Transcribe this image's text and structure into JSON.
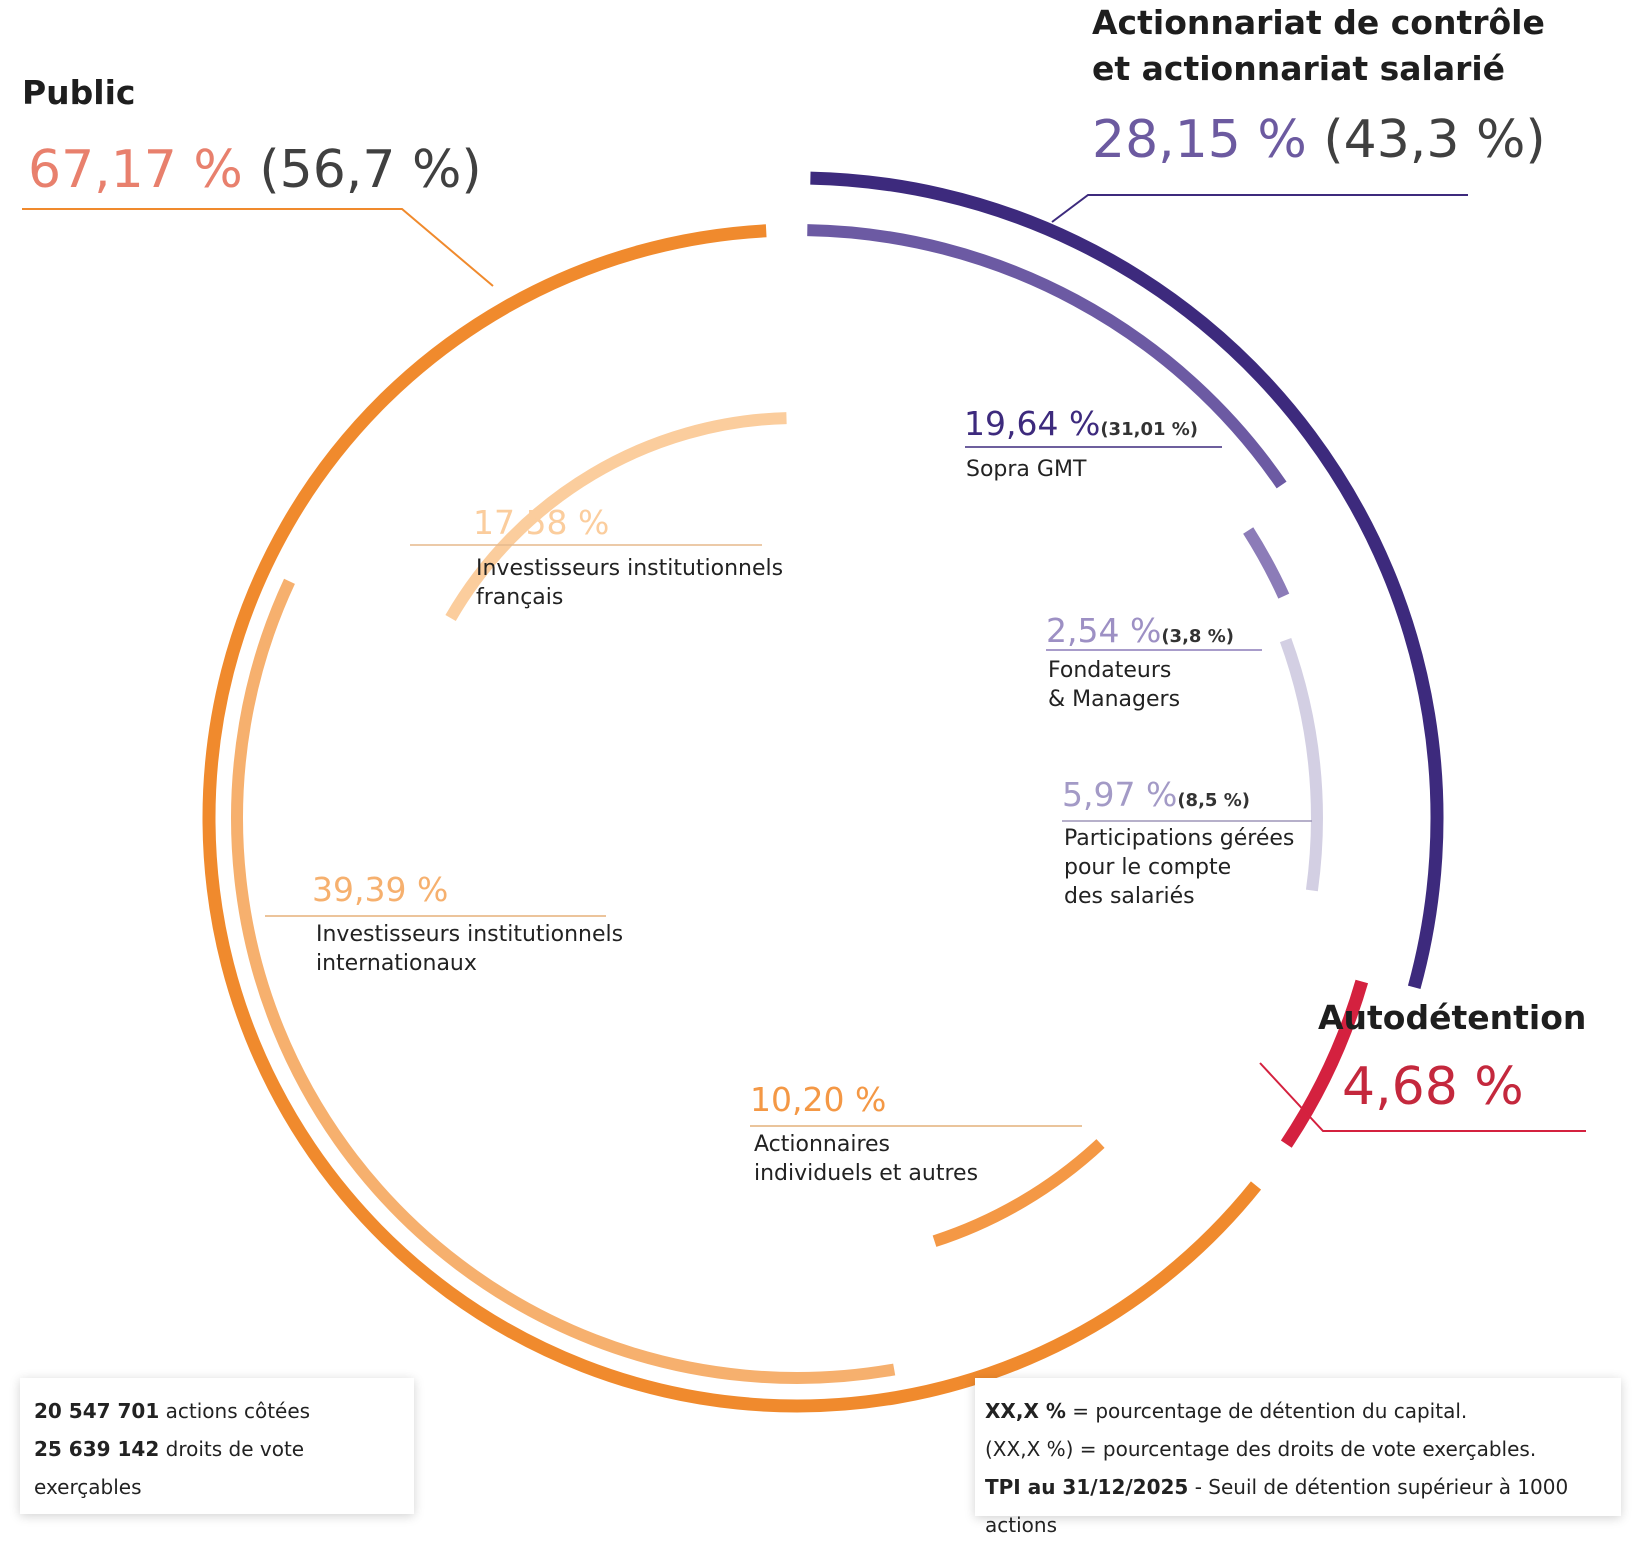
{
  "chart_data": {
    "type": "pie",
    "groups": [
      {
        "name": "Public",
        "capital_pct": "67,17 %",
        "vote_pct": "(56,7 %)",
        "capital_value": 67.17,
        "vote_value": 56.7,
        "color": "#f08a2d",
        "pct_color": "#e8806d",
        "segments": [
          {
            "name": "Investisseurs institutionnels français",
            "lines": [
              "Investisseurs institutionnels",
              "français"
            ],
            "capital_pct": "17,58 %",
            "value": 17.58,
            "color": "#fbcd9d"
          },
          {
            "name": "Investisseurs institutionnels internationaux",
            "lines": [
              "Investisseurs institutionnels",
              "internationaux"
            ],
            "capital_pct": "39,39 %",
            "value": 39.39,
            "color": "#f6b06e"
          },
          {
            "name": "Actionnaires individuels et autres",
            "lines": [
              "Actionnaires",
              "individuels et autres"
            ],
            "capital_pct": "10,20 %",
            "value": 10.2,
            "color": "#f49845"
          }
        ]
      },
      {
        "name": "Actionnariat de contrôle et actionnariat salarié",
        "lines": [
          "Actionnariat de contrôle",
          "et actionnariat salarié"
        ],
        "capital_pct": "28,15 %",
        "vote_pct": "(43,3 %)",
        "capital_value": 28.15,
        "vote_value": 43.3,
        "color": "#3d2a7d",
        "pct_color": "#6c5aa0",
        "segments": [
          {
            "name": "Sopra GMT",
            "lines": [
              "Sopra GMT"
            ],
            "capital_pct": "19,64 %",
            "vote_pct": "(31,01 %)",
            "value": 19.64,
            "color": "#6c5aa3",
            "pct_color": "#3d2a7d"
          },
          {
            "name": "Fondateurs & Managers",
            "lines": [
              "Fondateurs",
              "& Managers"
            ],
            "capital_pct": "2,54 %",
            "vote_pct": "(3,8 %)",
            "value": 2.54,
            "color": "#8c7cb8",
            "pct_color": "#9d90c4"
          },
          {
            "name": "Participations gérées pour le compte des salariés",
            "lines": [
              "Participations gérées",
              "pour le compte",
              "des salariés"
            ],
            "capital_pct": "5,97 %",
            "vote_pct": "(8,5 %)",
            "value": 5.97,
            "color": "#d3cfe3",
            "pct_color": "#a39ac6"
          }
        ]
      },
      {
        "name": "Autodétention",
        "capital_pct": "4,68 %",
        "capital_value": 4.68,
        "color": "#d4213f",
        "pct_color": "#c4283d",
        "segments": []
      }
    ]
  },
  "info_left": {
    "shares_count": "20 547 701",
    "shares_label": "actions côtées",
    "votes_count": "25 639 142",
    "votes_label": "droits de vote exerçables"
  },
  "info_right": {
    "line1_key": "XX,X %",
    "line1_text": "= pourcentage de détention du capital.",
    "line2_key": "(XX,X %)",
    "line2_text": "= pourcentage des droits de vote exerçables.",
    "line3_key": "TPI au 31/12/2025",
    "line3_text": "- Seuil de détention supérieur à 1000 actions"
  }
}
